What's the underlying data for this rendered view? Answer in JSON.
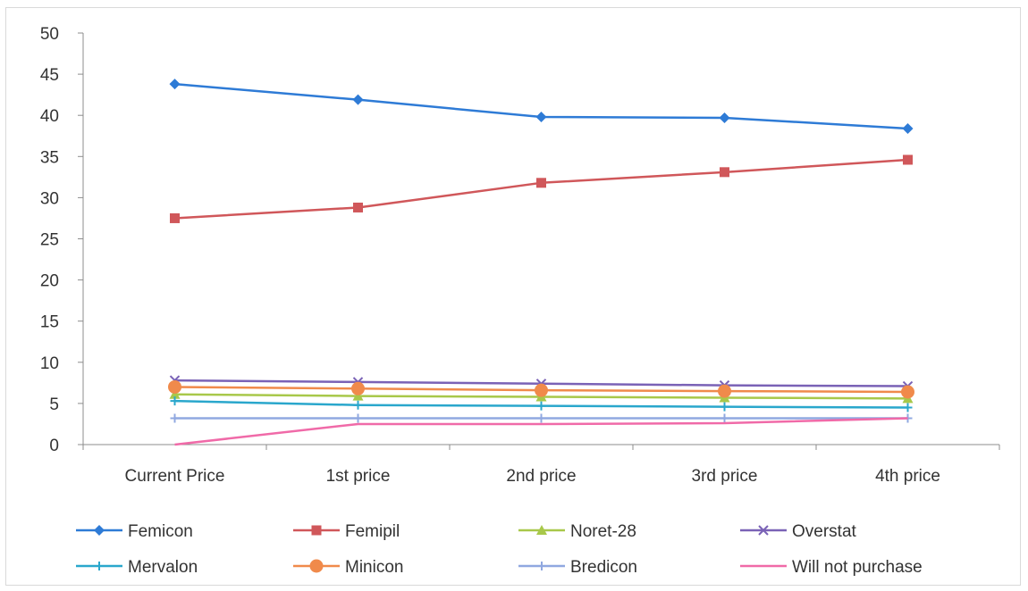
{
  "chart_data": {
    "type": "line",
    "title": "",
    "xlabel": "",
    "ylabel": "",
    "categories": [
      "Current Price",
      "1st price",
      "2nd price",
      "3rd price",
      "4th price"
    ],
    "ylim": [
      0,
      50
    ],
    "yticks": [
      0,
      5,
      10,
      15,
      20,
      25,
      30,
      35,
      40,
      45,
      50
    ],
    "grid": false,
    "legend_position": "bottom",
    "series": [
      {
        "name": "Femicon",
        "values": [
          43.8,
          41.9,
          39.8,
          39.7,
          38.4
        ],
        "color": "#2e7bd6",
        "marker": "diamond"
      },
      {
        "name": "Femipil",
        "values": [
          27.5,
          28.8,
          31.8,
          33.1,
          34.6
        ],
        "color": "#d0575a",
        "marker": "square"
      },
      {
        "name": "Noret-28",
        "values": [
          6.1,
          5.9,
          5.8,
          5.7,
          5.6
        ],
        "color": "#a8c84a",
        "marker": "triangle"
      },
      {
        "name": "Overstat",
        "values": [
          7.8,
          7.6,
          7.4,
          7.2,
          7.1
        ],
        "color": "#7a62b6",
        "marker": "x"
      },
      {
        "name": "Mervalon",
        "values": [
          5.3,
          4.8,
          4.7,
          4.6,
          4.5
        ],
        "color": "#2aa7cc",
        "marker": "plus"
      },
      {
        "name": "Minicon",
        "values": [
          7.0,
          6.8,
          6.6,
          6.5,
          6.4
        ],
        "color": "#f08a4b",
        "marker": "circle"
      },
      {
        "name": "Bredicon",
        "values": [
          3.2,
          3.2,
          3.2,
          3.2,
          3.2
        ],
        "color": "#90a8e0",
        "marker": "plus"
      },
      {
        "name": "Will not purchase",
        "values": [
          0,
          2.5,
          2.5,
          2.6,
          3.2
        ],
        "color": "#f06aa8",
        "marker": "none"
      }
    ]
  }
}
